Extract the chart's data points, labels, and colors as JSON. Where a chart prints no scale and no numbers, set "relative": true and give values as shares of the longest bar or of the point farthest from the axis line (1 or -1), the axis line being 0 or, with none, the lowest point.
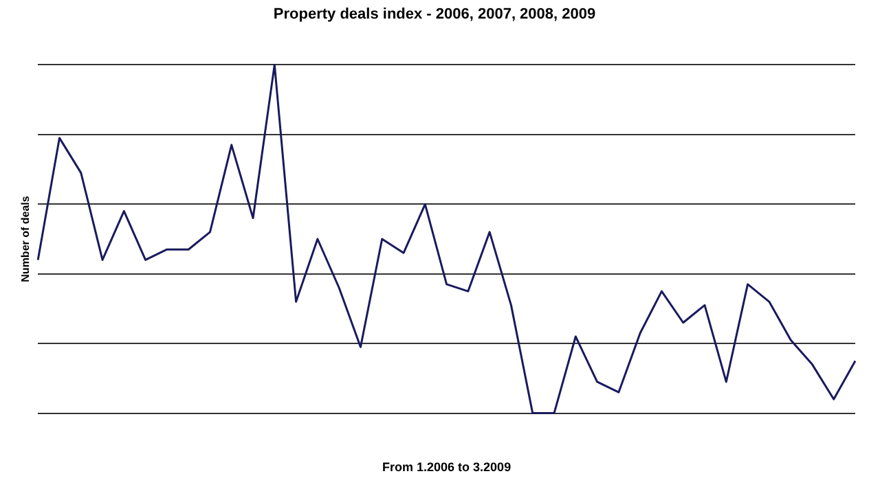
{
  "chart_data": {
    "type": "line",
    "title": "Property deals index - 2006, 2007, 2008, 2009",
    "xlabel": "From 1.2006 to 3.2009",
    "ylabel": "Number of deals",
    "relative": true,
    "categories": [
      null,
      null,
      null,
      null,
      null,
      null,
      null,
      null,
      null,
      null,
      null,
      null,
      null,
      null,
      null,
      null,
      null,
      null,
      null,
      null,
      null,
      null,
      null,
      null,
      null,
      null,
      null,
      null,
      null,
      null,
      null,
      null,
      null,
      null,
      null,
      null,
      null,
      null,
      null
    ],
    "series": [
      {
        "color": "#1a1a5e",
        "values": [
          0.44,
          0.79,
          0.69,
          0.44,
          0.58,
          0.44,
          0.47,
          0.47,
          0.52,
          0.77,
          0.56,
          1,
          0.32,
          0.5,
          0.36,
          0.19,
          0.5,
          0.46,
          0.6,
          0.37,
          0.35,
          0.52,
          0.31,
          0,
          0,
          0.22,
          0.09,
          0.06,
          0.23,
          0.35,
          0.26,
          0.31,
          0.09,
          0.37,
          0.32,
          0.21,
          0.14,
          0.04,
          0.15
        ]
      }
    ],
    "grid": "y",
    "legend": false,
    "marker": "none",
    "line_style": "solid"
  }
}
